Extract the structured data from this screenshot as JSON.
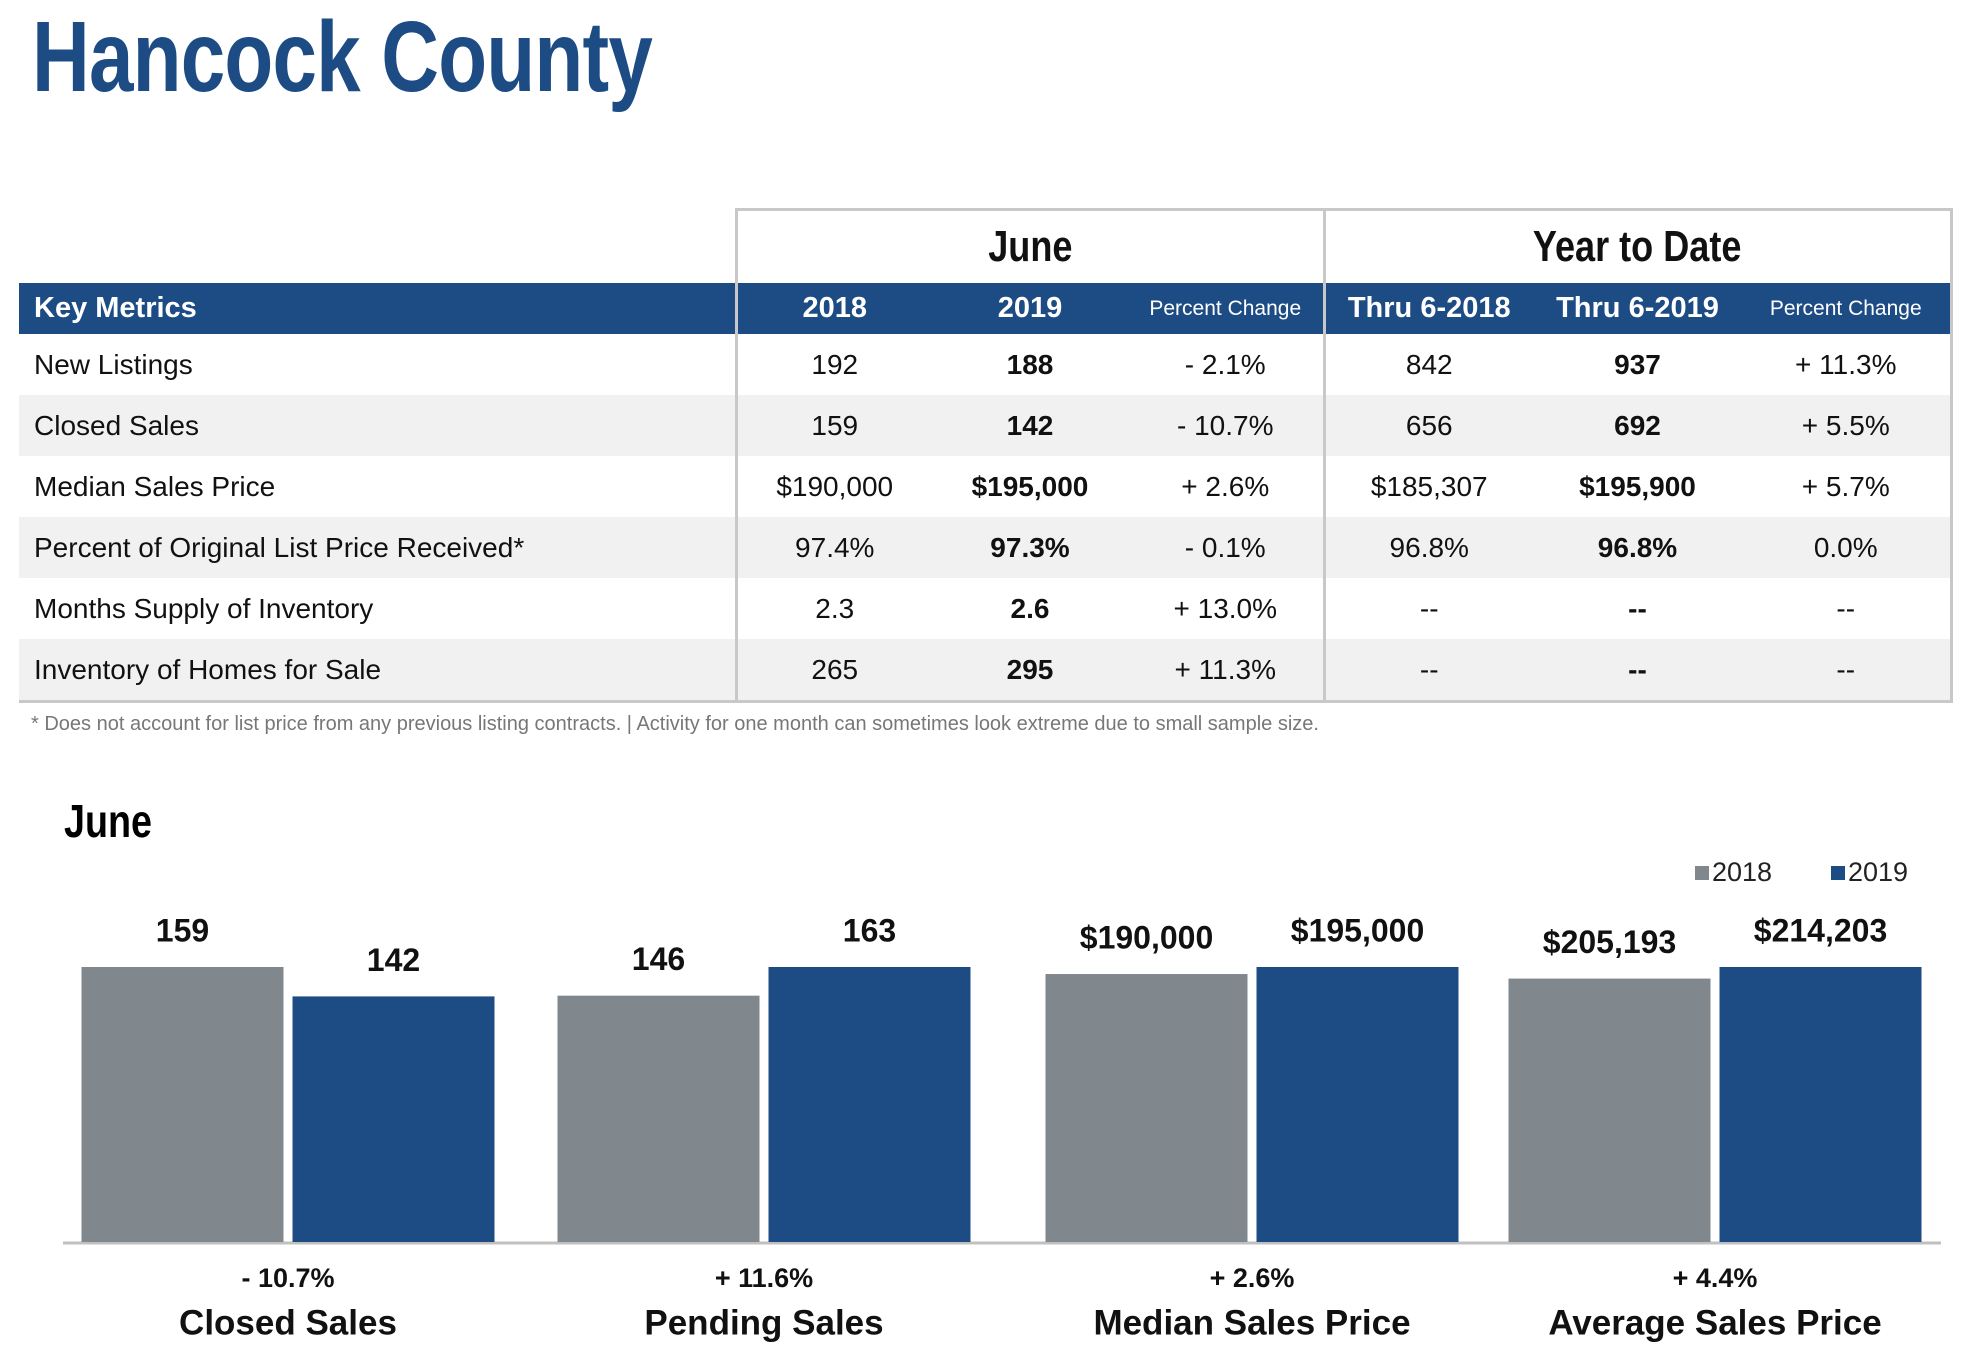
{
  "header": {
    "title": "Hancock County"
  },
  "table": {
    "groups": [
      "June",
      "Year to Date"
    ],
    "columns": [
      "Key Metrics",
      "2018",
      "2019",
      "Percent Change",
      "Thru 6-2018",
      "Thru 6-2019",
      "Percent Change"
    ],
    "rows": [
      [
        "New Listings",
        "192",
        "188",
        "- 2.1%",
        "842",
        "937",
        "+ 11.3%"
      ],
      [
        "Closed Sales",
        "159",
        "142",
        "- 10.7%",
        "656",
        "692",
        "+ 5.5%"
      ],
      [
        "Median Sales Price",
        "$190,000",
        "$195,000",
        "+ 2.6%",
        "$185,307",
        "$195,900",
        "+ 5.7%"
      ],
      [
        "Percent of Original List Price Received*",
        "97.4%",
        "97.3%",
        "- 0.1%",
        "96.8%",
        "96.8%",
        "0.0%"
      ],
      [
        "Months Supply of Inventory",
        "2.3",
        "2.6",
        "+ 13.0%",
        "--",
        "--",
        "--"
      ],
      [
        "Inventory of Homes for Sale",
        "265",
        "295",
        "+ 11.3%",
        "--",
        "--",
        "--"
      ]
    ]
  },
  "note": "* Does not account for list price from any previous listing contracts.  |  Activity for one month can sometimes look extreme due to small sample size.",
  "section_title": "June",
  "chart_data": [
    {
      "type": "bar",
      "title": "Closed Sales",
      "change": "- 10.7%",
      "series": [
        {
          "name": "2018",
          "color": "#80878d",
          "values": [
            159
          ]
        },
        {
          "name": "2019",
          "color": "#1d4c85",
          "values": [
            142
          ]
        }
      ]
    },
    {
      "type": "bar",
      "title": "Pending Sales",
      "change": "+ 11.6%",
      "series": [
        {
          "name": "2018",
          "color": "#80878d",
          "values": [
            146
          ]
        },
        {
          "name": "2019",
          "color": "#1d4c85",
          "values": [
            163
          ]
        }
      ]
    },
    {
      "type": "bar",
      "title": "Median Sales Price",
      "change": "+ 2.6%",
      "series": [
        {
          "name": "2018",
          "color": "#80878d",
          "values": [
            190000
          ],
          "value_labels": [
            "$190,000"
          ]
        },
        {
          "name": "2019",
          "color": "#1d4c85",
          "values": [
            195000
          ],
          "value_labels": [
            "$195,000"
          ]
        }
      ]
    },
    {
      "type": "bar",
      "title": "Average Sales Price",
      "change": "+ 4.4%",
      "series": [
        {
          "name": "2018",
          "color": "#80878d",
          "values": [
            205193
          ],
          "value_labels": [
            "$205,193"
          ]
        },
        {
          "name": "2019",
          "color": "#1d4c85",
          "values": [
            214203
          ],
          "value_labels": [
            "$214,203"
          ]
        }
      ]
    }
  ]
}
